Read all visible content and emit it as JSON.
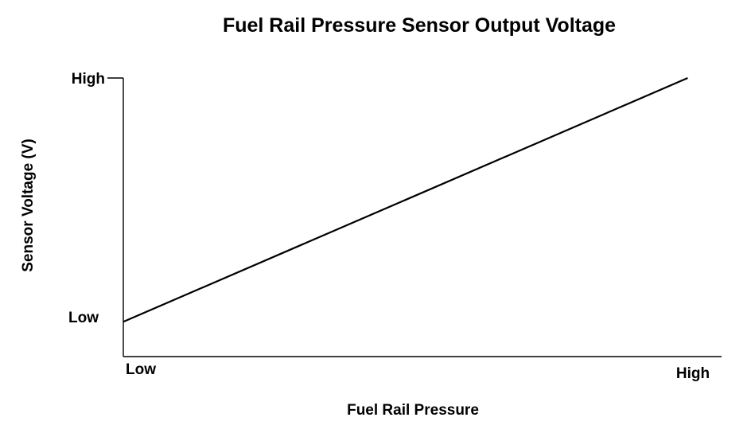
{
  "chart_data": {
    "type": "line",
    "title": "Fuel Rail Pressure Sensor Output Voltage",
    "xlabel": "Fuel Rail Pressure",
    "ylabel": "Sensor Voltage (V)",
    "x_ticks": [
      {
        "value": 0,
        "label": "Low"
      },
      {
        "value": 1,
        "label": "High"
      }
    ],
    "y_ticks": [
      {
        "value": 0.15,
        "label": "Low"
      },
      {
        "value": 1,
        "label": "High"
      }
    ],
    "xlim": [
      0,
      1.06
    ],
    "ylim": [
      0,
      1
    ],
    "grid": false,
    "legend": "none",
    "series": [
      {
        "x": [
          0,
          1
        ],
        "y": [
          0.125,
          1
        ],
        "color": "#000000"
      }
    ]
  }
}
